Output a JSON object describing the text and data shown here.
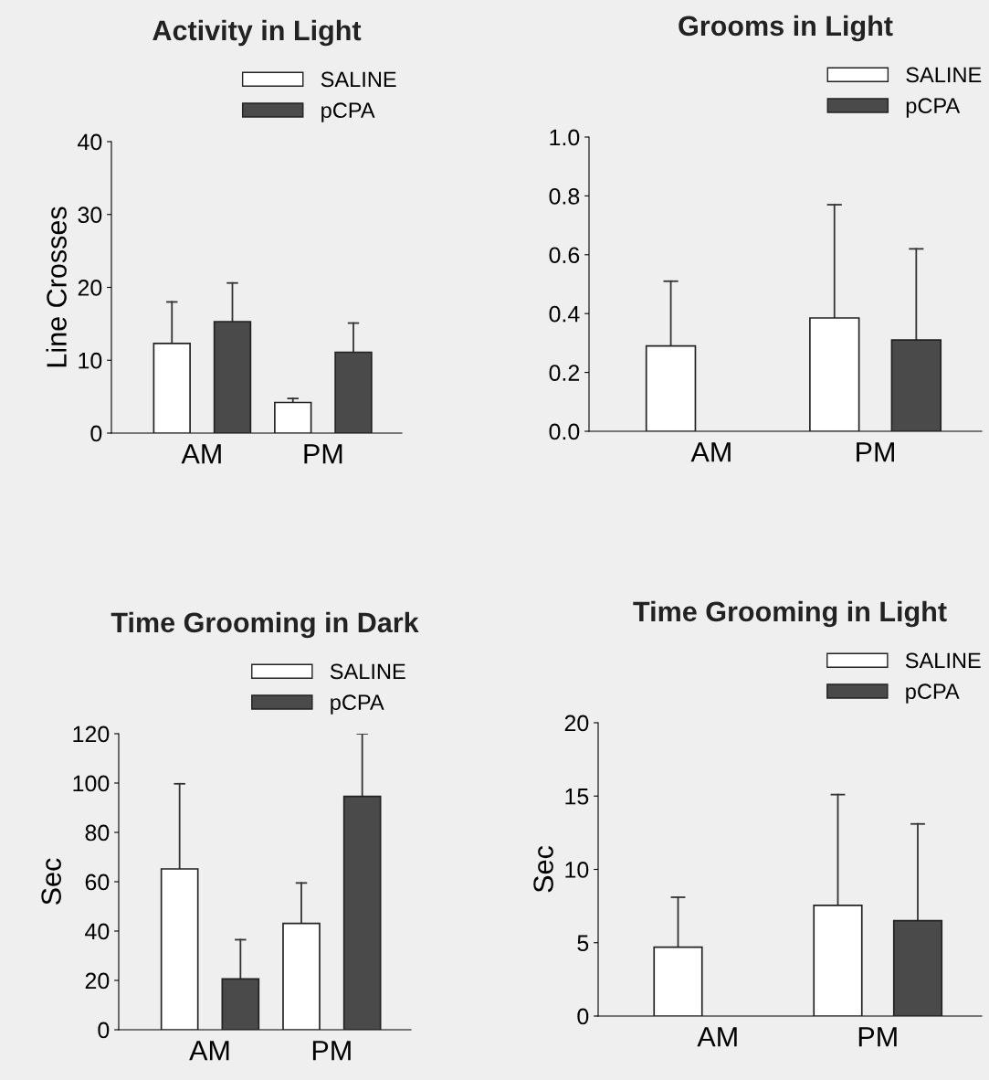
{
  "chart_data": [
    {
      "type": "bar",
      "title": "Activity in Light",
      "ylabel": "Line Crosses",
      "categories": [
        "AM",
        "PM"
      ],
      "ylim": [
        0,
        40
      ],
      "yticks": [
        0,
        10,
        20,
        30,
        40
      ],
      "legend": "top right",
      "grid": false,
      "series": [
        {
          "name": "SALINE",
          "color": "#ffffff",
          "values": [
            12.3,
            4.2
          ],
          "errors": [
            [
              12.3,
              18.0
            ],
            [
              4.2,
              4.75
            ]
          ]
        },
        {
          "name": "pCPA",
          "color": "#4a4a4a",
          "values": [
            15.3,
            11.1
          ],
          "errors": [
            [
              15.3,
              20.6
            ],
            [
              11.1,
              15.1
            ]
          ]
        }
      ]
    },
    {
      "type": "bar",
      "title": "Grooms in Light",
      "categories": [
        "AM",
        "PM"
      ],
      "ylim": [
        0,
        1.0
      ],
      "yticks": [
        {
          "value": 0,
          "label": "0.0"
        },
        0.2,
        0.4,
        0.6,
        0.8,
        {
          "value": 1,
          "label": "1.0"
        }
      ],
      "legend": "top right",
      "grid": false,
      "series": [
        {
          "name": "SALINE",
          "color": "#ffffff",
          "values": [
            0.29,
            0.385
          ],
          "errors": [
            [
              0.29,
              0.51
            ],
            [
              0.385,
              0.77
            ]
          ]
        },
        {
          "name": "pCPA",
          "color": "#4a4a4a",
          "values": [
            null,
            0.31
          ],
          "errors": [
            null,
            [
              0.31,
              0.62
            ]
          ]
        }
      ]
    },
    {
      "type": "bar",
      "title": "Time Grooming in Dark",
      "ylabel": "Sec",
      "categories": [
        "AM",
        "PM"
      ],
      "ylim": [
        0,
        120
      ],
      "yticks": [
        0,
        20,
        40,
        60,
        80,
        100,
        120
      ],
      "legend": "top right",
      "grid": false,
      "series": [
        {
          "name": "SALINE",
          "color": "#ffffff",
          "values": [
            65.2,
            43.1
          ],
          "errors": [
            [
              65.2,
              99.7
            ],
            [
              43.1,
              59.5
            ]
          ]
        },
        {
          "name": "pCPA",
          "color": "#4a4a4a",
          "values": [
            20.6,
            94.6
          ],
          "errors": [
            [
              20.6,
              36.5
            ],
            [
              94.6,
              120
            ]
          ]
        }
      ]
    },
    {
      "type": "bar",
      "title": "Time Grooming in Light",
      "ylabel": "Sec",
      "categories": [
        "AM",
        "PM"
      ],
      "ylim": [
        0,
        20
      ],
      "yticks": [
        0,
        5,
        10,
        15,
        20
      ],
      "legend": "top right",
      "grid": false,
      "series": [
        {
          "name": "SALINE",
          "color": "#ffffff",
          "values": [
            4.7,
            7.55
          ],
          "errors": [
            [
              4.7,
              8.1
            ],
            [
              7.55,
              15.1
            ]
          ]
        },
        {
          "name": "pCPA",
          "color": "#4a4a4a",
          "values": [
            null,
            6.5
          ],
          "errors": [
            null,
            [
              6.5,
              13.1
            ]
          ]
        }
      ]
    }
  ]
}
